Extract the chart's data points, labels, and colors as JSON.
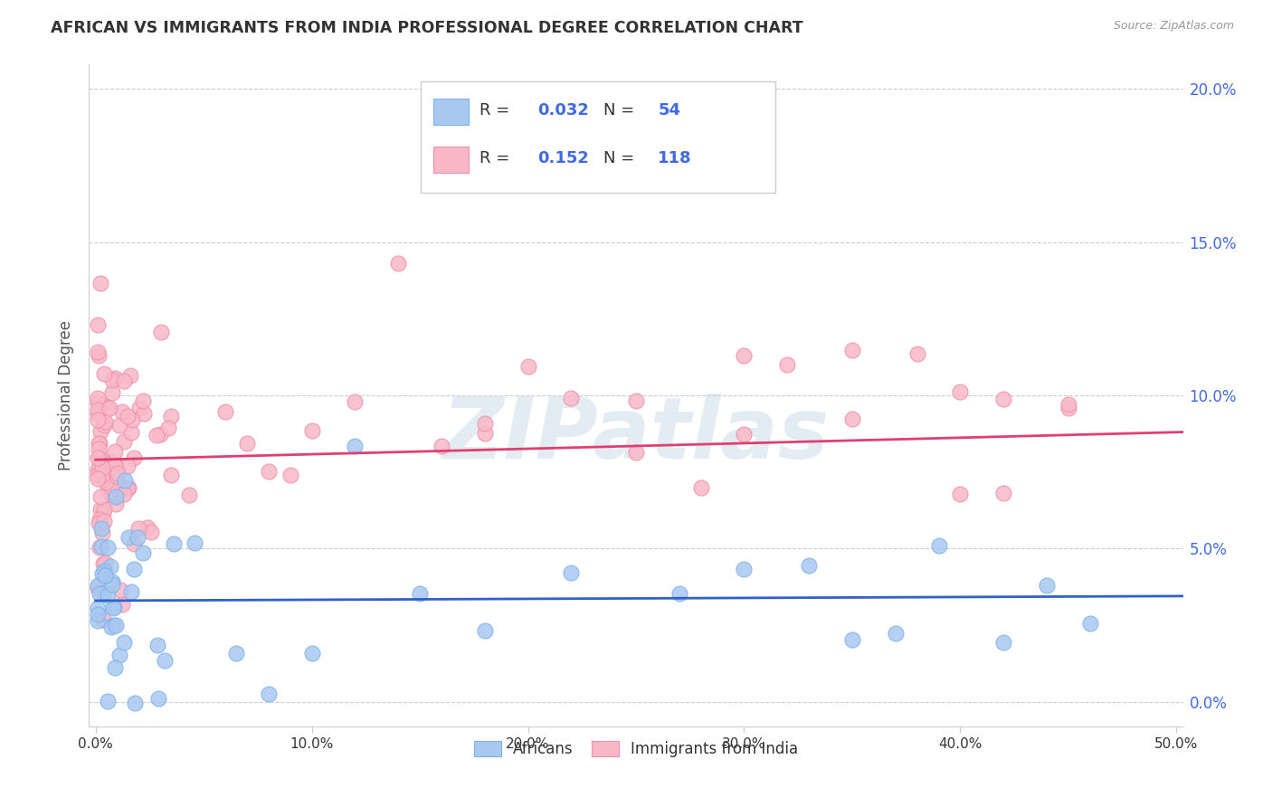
{
  "title": "AFRICAN VS IMMIGRANTS FROM INDIA PROFESSIONAL DEGREE CORRELATION CHART",
  "source": "Source: ZipAtlas.com",
  "ylabel_label": "Professional Degree",
  "xlim": [
    -0.003,
    0.503
  ],
  "ylim": [
    -0.008,
    0.208
  ],
  "x_tick_vals": [
    0.0,
    0.1,
    0.2,
    0.3,
    0.4,
    0.5
  ],
  "y_tick_vals": [
    0.0,
    0.05,
    0.1,
    0.15,
    0.2
  ],
  "african_color": "#A8C8F0",
  "african_edge_color": "#7EB3E8",
  "india_color": "#F8B8C8",
  "india_edge_color": "#F090A8",
  "african_line_color": "#3060C8",
  "india_line_color": "#E04070",
  "legend_R_african": "0.032",
  "legend_N_african": "54",
  "legend_R_india": "0.152",
  "legend_N_india": "118",
  "legend_text_color": "#333333",
  "legend_value_color": "#4169E1",
  "watermark": "ZIPatlas",
  "background_color": "#FFFFFF",
  "grid_color": "#CCCCCC",
  "tick_color": "#4169E1",
  "title_color": "#333333",
  "source_color": "#999999",
  "ylabel_color": "#555555",
  "african_line_intercept": 0.033,
  "african_line_slope": 0.003,
  "india_line_intercept": 0.079,
  "india_line_slope": 0.018
}
